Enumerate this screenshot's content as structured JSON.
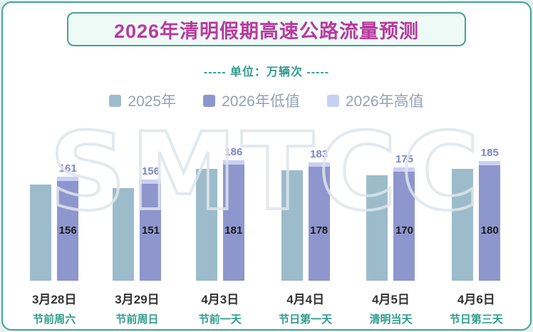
{
  "page": {
    "title": "2026年清明假期高速公路流量预测",
    "subtitle": "----- 单位：万辆次 -----",
    "watermark": "SMTCC"
  },
  "colors": {
    "card_border": "#45a295",
    "title_text": "#b93a9d",
    "subtitle_text": "#2f9d8b",
    "legend_text": "#93a2b6",
    "bar_2025": "#9cbccb",
    "bar_2026_low": "#8d96cd",
    "bar_2026_high": "#c9d0f2",
    "high_label_text": "#7c86c5",
    "low_label_text": "#1c1c1c",
    "category_date_text": "#333333",
    "category_desc_text": "#2f9d8b"
  },
  "legend": [
    {
      "label": "2025年",
      "color": "#9cbccb"
    },
    {
      "label": "2026年低值",
      "color": "#8d96cd"
    },
    {
      "label": "2026年高值",
      "color": "#c9d0f2"
    }
  ],
  "chart_data": {
    "type": "bar",
    "title": "2026年清明假期高速公路流量预测",
    "unit": "万辆次",
    "categories": [
      {
        "date": "3月28日",
        "desc": "节前周六"
      },
      {
        "date": "3月29日",
        "desc": "节前周日"
      },
      {
        "date": "4月3日",
        "desc": "节前一天"
      },
      {
        "date": "4月4日",
        "desc": "节日第一天"
      },
      {
        "date": "4月5日",
        "desc": "清明当天"
      },
      {
        "date": "4月6日",
        "desc": "节日第三天"
      }
    ],
    "series": [
      {
        "name": "2025年",
        "values": [
          150,
          145,
          175,
          172,
          165,
          174
        ],
        "labeled": false,
        "color": "#9cbccb"
      },
      {
        "name": "2026年低值",
        "values": [
          156,
          151,
          181,
          178,
          170,
          180
        ],
        "labeled": true,
        "color": "#8d96cd"
      },
      {
        "name": "2026年高值",
        "values": [
          161,
          156,
          186,
          183,
          175,
          185
        ],
        "labeled": true,
        "color": "#c9d0f2"
      }
    ],
    "ylim": [
      0,
      200
    ],
    "grid": false,
    "legend_position": "top",
    "value_labels": true
  }
}
